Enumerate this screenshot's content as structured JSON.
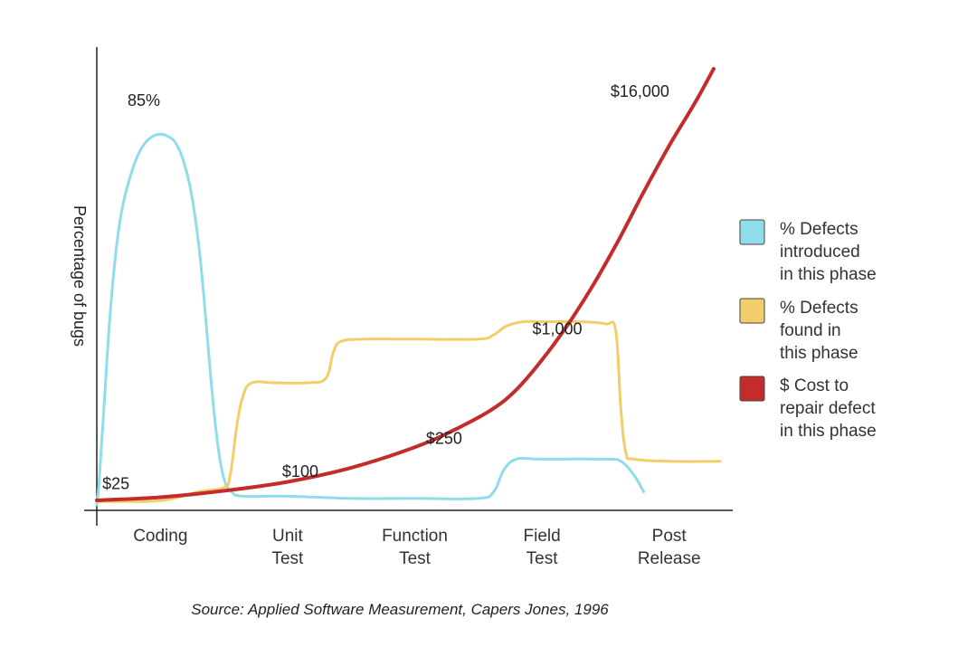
{
  "chart_data": {
    "type": "line",
    "ylabel": "Percentage of bugs",
    "source": "Source: Applied Software Measurement, Capers Jones, 1996",
    "categories": [
      {
        "lines": [
          "Coding"
        ]
      },
      {
        "lines": [
          "Unit",
          "Test"
        ]
      },
      {
        "lines": [
          "Function",
          "Test"
        ]
      },
      {
        "lines": [
          "Field",
          "Test"
        ]
      },
      {
        "lines": [
          "Post",
          "Release"
        ]
      }
    ],
    "x_domain": [
      -0.5,
      4.5
    ],
    "y_domain": [
      0,
      100
    ],
    "cost_domain": [
      0,
      17000
    ],
    "series": [
      {
        "key": "introduced",
        "color": "#8fdcea",
        "legend_lines": [
          "% Defects",
          "introduced",
          "in this phase"
        ],
        "points": [
          [
            -0.5,
            0
          ],
          [
            -0.48,
            6
          ],
          [
            -0.44,
            24
          ],
          [
            -0.4,
            42
          ],
          [
            -0.35,
            58
          ],
          [
            -0.3,
            68
          ],
          [
            -0.24,
            75
          ],
          [
            -0.18,
            80
          ],
          [
            -0.12,
            83
          ],
          [
            -0.06,
            84.5
          ],
          [
            0,
            85
          ],
          [
            0.06,
            84.5
          ],
          [
            0.12,
            83
          ],
          [
            0.18,
            79
          ],
          [
            0.24,
            72
          ],
          [
            0.3,
            60
          ],
          [
            0.35,
            45
          ],
          [
            0.4,
            28
          ],
          [
            0.45,
            14
          ],
          [
            0.5,
            6
          ],
          [
            0.56,
            3
          ],
          [
            0.65,
            2
          ],
          [
            1.0,
            2
          ],
          [
            1.5,
            1.5
          ],
          [
            2.0,
            1.5
          ],
          [
            2.5,
            1.5
          ],
          [
            2.62,
            3
          ],
          [
            2.7,
            8
          ],
          [
            2.8,
            10.5
          ],
          [
            3.0,
            10.5
          ],
          [
            3.5,
            10.5
          ],
          [
            3.62,
            10
          ],
          [
            3.72,
            7
          ],
          [
            3.8,
            3
          ]
        ]
      },
      {
        "key": "found",
        "color": "#f2cd6a",
        "legend_lines": [
          "% Defects",
          "found in",
          "this phase"
        ],
        "points": [
          [
            -0.5,
            0.8
          ],
          [
            0,
            1
          ],
          [
            0.3,
            3
          ],
          [
            0.5,
            4
          ],
          [
            0.55,
            7
          ],
          [
            0.6,
            18
          ],
          [
            0.65,
            25
          ],
          [
            0.72,
            28
          ],
          [
            0.9,
            28
          ],
          [
            1.15,
            28
          ],
          [
            1.3,
            29
          ],
          [
            1.36,
            35
          ],
          [
            1.42,
            37.5
          ],
          [
            1.6,
            38
          ],
          [
            2.0,
            38
          ],
          [
            2.5,
            38
          ],
          [
            2.62,
            39
          ],
          [
            2.72,
            41
          ],
          [
            2.85,
            42
          ],
          [
            3.0,
            42
          ],
          [
            3.3,
            42
          ],
          [
            3.5,
            41.5
          ],
          [
            3.58,
            40
          ],
          [
            3.62,
            22
          ],
          [
            3.66,
            12
          ],
          [
            3.72,
            10.5
          ],
          [
            4.0,
            10
          ],
          [
            4.4,
            10
          ]
        ]
      },
      {
        "key": "cost",
        "color": "#c42b2b",
        "legend_lines": [
          "$ Cost to",
          "repair defect",
          "in this phase"
        ],
        "points": [
          [
            -0.5,
            180
          ],
          [
            0,
            300
          ],
          [
            0.5,
            550
          ],
          [
            1,
            900
          ],
          [
            1.5,
            1450
          ],
          [
            2,
            2250
          ],
          [
            2.3,
            2900
          ],
          [
            2.6,
            3700
          ],
          [
            2.8,
            4500
          ],
          [
            3,
            5650
          ],
          [
            3.2,
            7000
          ],
          [
            3.4,
            8550
          ],
          [
            3.6,
            10300
          ],
          [
            3.8,
            12200
          ],
          [
            4.0,
            14000
          ],
          [
            4.2,
            15650
          ],
          [
            4.35,
            17000
          ]
        ]
      }
    ],
    "annotations": [
      {
        "text": "85%",
        "x": -0.13,
        "y": 91.5,
        "axis": "pct"
      },
      {
        "text": "$25",
        "x": -0.35,
        "y": 620,
        "axis": "cost"
      },
      {
        "text": "$100",
        "x": 1.1,
        "y": 1100,
        "axis": "cost"
      },
      {
        "text": "$250",
        "x": 2.23,
        "y": 2380,
        "axis": "cost"
      },
      {
        "text": "$1,000",
        "x": 3.12,
        "y": 6650,
        "axis": "cost"
      },
      {
        "text": "$16,000",
        "x": 3.77,
        "y": 15900,
        "axis": "cost"
      }
    ]
  }
}
